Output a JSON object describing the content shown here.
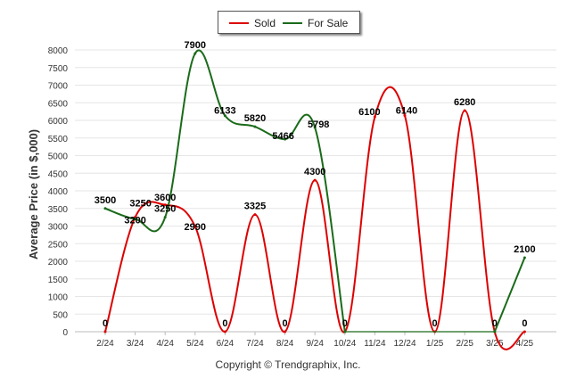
{
  "chart_data": {
    "type": "line",
    "ylabel": "Average Price (in $,000)",
    "categories": [
      "2/24",
      "3/24",
      "4/24",
      "5/24",
      "6/24",
      "7/24",
      "8/24",
      "9/24",
      "10/24",
      "11/24",
      "12/24",
      "1/25",
      "2/25",
      "3/25",
      "4/25"
    ],
    "yticks": [
      0,
      500,
      1000,
      1500,
      2000,
      2500,
      3000,
      3500,
      4000,
      4500,
      5000,
      5500,
      6000,
      6500,
      7000,
      7500,
      8000
    ],
    "ylim": [
      0,
      8000
    ],
    "grid": true,
    "legend_position": "top-center",
    "series": [
      {
        "name": "Sold",
        "color": "#dd0000",
        "values": [
          0,
          3250,
          3600,
          2990,
          0,
          3325,
          0,
          4300,
          0,
          6100,
          6140,
          0,
          6280,
          0,
          0
        ],
        "labels": [
          "0",
          "3250",
          "3600",
          "2990",
          "0",
          "3325",
          "0",
          "4300",
          "0",
          "6100",
          "6140",
          "0",
          "6280",
          "0",
          "0"
        ]
      },
      {
        "name": "For Sale",
        "color": "#1a6b1a",
        "values": [
          3500,
          3200,
          3250,
          7900,
          6133,
          5820,
          5466,
          5798,
          0,
          null,
          null,
          null,
          null,
          0,
          2100
        ],
        "labels": [
          "3500",
          "3200",
          "3250",
          "7900",
          "6133",
          "5820",
          "5466",
          "5798",
          "",
          "",
          "",
          "",
          "",
          "",
          "2100"
        ]
      }
    ]
  },
  "legend": {
    "sold": "Sold",
    "for_sale": "For Sale"
  },
  "footer": {
    "copyright": "Copyright © Trendgraphix, Inc."
  },
  "colors": {
    "sold": "#dd0000",
    "for_sale": "#1a6b1a",
    "grid": "#e6e6e6"
  }
}
